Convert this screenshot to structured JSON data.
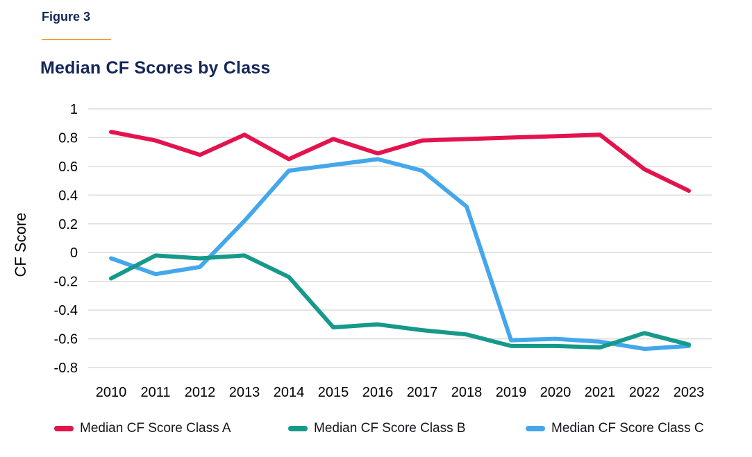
{
  "header": {
    "figure_label": "Figure 3",
    "title": "Median CF Scores by Class"
  },
  "colors": {
    "navy": "#14265a",
    "accent_orange": "#f7a13c",
    "gridline": "#dcdcdc",
    "axis_text": "#000000",
    "legend_text": "#15151c",
    "class_a_red": "#e3134e",
    "class_b_teal": "#16998a",
    "class_c_blue": "#44a7ec",
    "background": "#ffffff"
  },
  "chart_data": {
    "type": "line",
    "title": "Median CF Scores by Class",
    "xlabel": "",
    "ylabel": "CF Score",
    "x": [
      "2010",
      "2011",
      "2012",
      "2013",
      "2014",
      "2015",
      "2016",
      "2017",
      "2018",
      "2019",
      "2020",
      "2021",
      "2022",
      "2023"
    ],
    "ylim": [
      -0.8,
      1
    ],
    "yticks": [
      "1",
      "0.8",
      "0.6",
      "0.4",
      "0.2",
      "0",
      "-0.2",
      "-0.4",
      "-0.6",
      "-0.8"
    ],
    "grid": "horizontal",
    "legend_position": "bottom",
    "series": [
      {
        "id": "class-a",
        "name": "Median CF Score Class A",
        "color": "#e3134e",
        "values": [
          0.84,
          0.78,
          0.68,
          0.82,
          0.65,
          0.79,
          0.69,
          0.78,
          0.79,
          0.8,
          0.81,
          0.82,
          0.58,
          0.43
        ]
      },
      {
        "id": "class-b",
        "name": "Median CF Score Class B",
        "color": "#16998a",
        "values": [
          -0.18,
          -0.02,
          -0.04,
          -0.02,
          -0.17,
          -0.52,
          -0.5,
          -0.54,
          -0.57,
          -0.65,
          -0.65,
          -0.66,
          -0.56,
          -0.64
        ]
      },
      {
        "id": "class-c",
        "name": "Median CF Score Class C",
        "color": "#44a7ec",
        "values": [
          -0.04,
          -0.15,
          -0.1,
          0.22,
          0.57,
          0.61,
          0.65,
          0.57,
          0.32,
          -0.61,
          -0.6,
          -0.62,
          -0.67,
          -0.65
        ]
      }
    ]
  }
}
